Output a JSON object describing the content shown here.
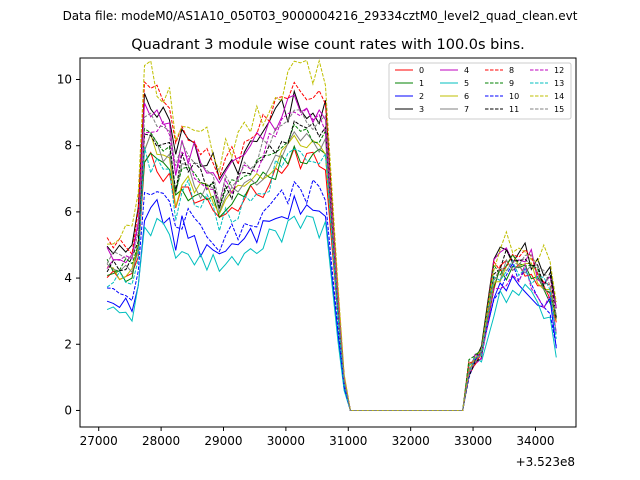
{
  "chart_data": {
    "type": "line",
    "suptitle": "Data file: modeM0/AS1A10_050T03_9000004216_29334cztM0_level2_quad_clean.evt",
    "title": "Quadrant 3 module wise count rates with 100.0s bins.",
    "xlabel": "",
    "ylabel": "",
    "x_offset_label": "+3.523e8",
    "xlim": [
      26700,
      34650
    ],
    "ylim": [
      -0.5,
      10.65
    ],
    "xticks": [
      27000,
      28000,
      29000,
      30000,
      31000,
      32000,
      33000,
      34000
    ],
    "xtick_labels": [
      "27000",
      "28000",
      "29000",
      "30000",
      "31000",
      "32000",
      "33000",
      "34000"
    ],
    "yticks": [
      0,
      2,
      4,
      6,
      8,
      10
    ],
    "ytick_labels": [
      "0",
      "2",
      "4",
      "6",
      "8",
      "10"
    ],
    "legend_position": "top-right",
    "legend_columns": 4,
    "segments": [
      {
        "start": 27134,
        "count": 36,
        "step": 100
      },
      {
        "start": 30834,
        "count": 24,
        "step": 100
      },
      {
        "start": 33334,
        "count": 11,
        "step": 100
      }
    ],
    "series": [
      {
        "name": "0",
        "color": "#ff0000",
        "dash": "solid",
        "base": 6.8,
        "tail": 3.9,
        "amp": 0.35
      },
      {
        "name": "1",
        "color": "#008000",
        "dash": "solid",
        "base": 6.9,
        "tail": 3.8,
        "amp": 0.3
      },
      {
        "name": "2",
        "color": "#0000ff",
        "dash": "solid",
        "base": 5.5,
        "tail": 3.3,
        "amp": 0.35
      },
      {
        "name": "3",
        "color": "#000000",
        "dash": "solid",
        "base": 8.3,
        "tail": 4.3,
        "amp": 0.4
      },
      {
        "name": "4",
        "color": "#bf00bf",
        "dash": "solid",
        "base": 8.2,
        "tail": 4.1,
        "amp": 0.4
      },
      {
        "name": "5",
        "color": "#00bfbf",
        "dash": "solid",
        "base": 5.0,
        "tail": 3.0,
        "amp": 0.3
      },
      {
        "name": "6",
        "color": "#bfbf00",
        "dash": "solid",
        "base": 7.2,
        "tail": 3.9,
        "amp": 0.3
      },
      {
        "name": "7",
        "color": "#808080",
        "dash": "solid",
        "base": 7.3,
        "tail": 3.9,
        "amp": 0.3
      },
      {
        "name": "8",
        "color": "#ff0000",
        "dash": "dashed",
        "base": 8.6,
        "tail": 4.2,
        "amp": 0.35
      },
      {
        "name": "9",
        "color": "#008000",
        "dash": "dashed",
        "base": 7.5,
        "tail": 4.0,
        "amp": 0.3
      },
      {
        "name": "10",
        "color": "#0000ff",
        "dash": "dashed",
        "base": 5.9,
        "tail": 3.5,
        "amp": 0.35
      },
      {
        "name": "11",
        "color": "#000000",
        "dash": "dashed",
        "base": 7.6,
        "tail": 4.1,
        "amp": 0.3
      },
      {
        "name": "12",
        "color": "#bf00bf",
        "dash": "dashed",
        "base": 7.8,
        "tail": 3.5,
        "amp": 0.35
      },
      {
        "name": "13",
        "color": "#00bfbf",
        "dash": "dashed",
        "base": 6.8,
        "tail": 3.7,
        "amp": 0.35
      },
      {
        "name": "14",
        "color": "#bfbf00",
        "dash": "dashed",
        "base": 9.1,
        "tail": 4.6,
        "amp": 0.45
      },
      {
        "name": "15",
        "color": "#808080",
        "dash": "dashed",
        "base": 7.9,
        "tail": 4.0,
        "amp": 0.3
      }
    ]
  }
}
